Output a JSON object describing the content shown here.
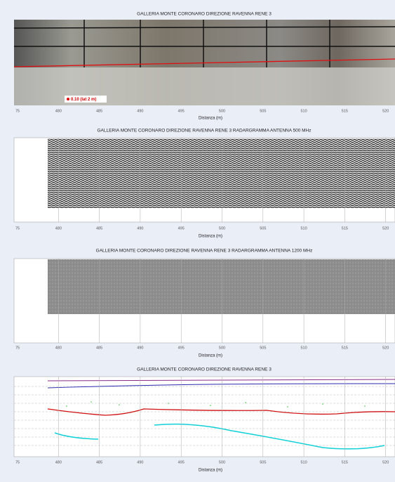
{
  "panels": [
    {
      "title": "GALLERIA MONTE CORONARO DIREZIONE RAVENNA RENE 3",
      "xlabel": "Distanza (m)",
      "xticks": [
        "75",
        "480",
        "485",
        "490",
        "495",
        "500",
        "505",
        "510",
        "515",
        "520"
      ],
      "annotation": "0.10 (lat 2 m)"
    },
    {
      "title": "GALLERIA MONTE CORONARO DIREZIONE RAVENNA RENE 3  RADARGRAMMA ANTENNA 500 MHz",
      "xlabel": "Distanza (m)",
      "xticks": [
        "75",
        "480",
        "485",
        "490",
        "495",
        "500",
        "505",
        "510",
        "515",
        "520"
      ]
    },
    {
      "title": "GALLERIA MONTE CORONARO DIREZIONE RAVENNA RENE 3 RADARGRAMMA ANTENNA 1200 MHz",
      "xlabel": "Distanza (m)",
      "xticks": [
        "75",
        "480",
        "485",
        "490",
        "495",
        "500",
        "505",
        "510",
        "515",
        "520"
      ]
    },
    {
      "title": "GALLERIA MONTE CORONARO DIREZIONE RAVENNA RENE 3",
      "xlabel": "Distanza (m)",
      "xticks": [
        "75",
        "480",
        "485",
        "490",
        "495",
        "500",
        "505",
        "510",
        "515",
        "520"
      ]
    }
  ]
}
